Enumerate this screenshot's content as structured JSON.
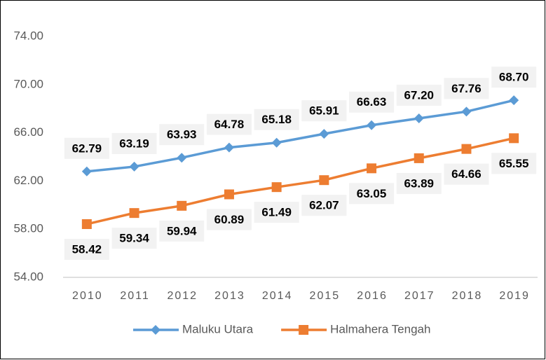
{
  "chart_data": {
    "type": "line",
    "categories": [
      "2010",
      "2011",
      "2012",
      "2013",
      "2014",
      "2015",
      "2016",
      "2017",
      "2018",
      "2019"
    ],
    "series": [
      {
        "name": "Maluku Utara",
        "color": "#5b9bd5",
        "marker": "diamond",
        "values": [
          62.79,
          63.19,
          63.93,
          64.78,
          65.18,
          65.91,
          66.63,
          67.2,
          67.76,
          68.7
        ],
        "value_labels": [
          "62.79",
          "63.19",
          "63.93",
          "64.78",
          "65.18",
          "65.91",
          "66.63",
          "67.20",
          "67.76",
          "68.70"
        ],
        "label_position": "above"
      },
      {
        "name": "Halmahera Tengah",
        "color": "#ed7d31",
        "marker": "square",
        "values": [
          58.42,
          59.34,
          59.94,
          60.89,
          61.49,
          62.07,
          63.05,
          63.89,
          64.66,
          65.55
        ],
        "value_labels": [
          "58.42",
          "59.34",
          "59.94",
          "60.89",
          "61.49",
          "62.07",
          "63.05",
          "63.89",
          "64.66",
          "65.55"
        ],
        "label_position": "below"
      }
    ],
    "ylim": [
      54,
      74
    ],
    "yticks": [
      {
        "value": 54,
        "label": "54.00"
      },
      {
        "value": 58,
        "label": "58.00"
      },
      {
        "value": 62,
        "label": "62.00"
      },
      {
        "value": 66,
        "label": "66.00"
      },
      {
        "value": 70,
        "label": "70.00"
      },
      {
        "value": 74,
        "label": "74.00"
      }
    ],
    "grid": false,
    "legend": "bottom"
  }
}
